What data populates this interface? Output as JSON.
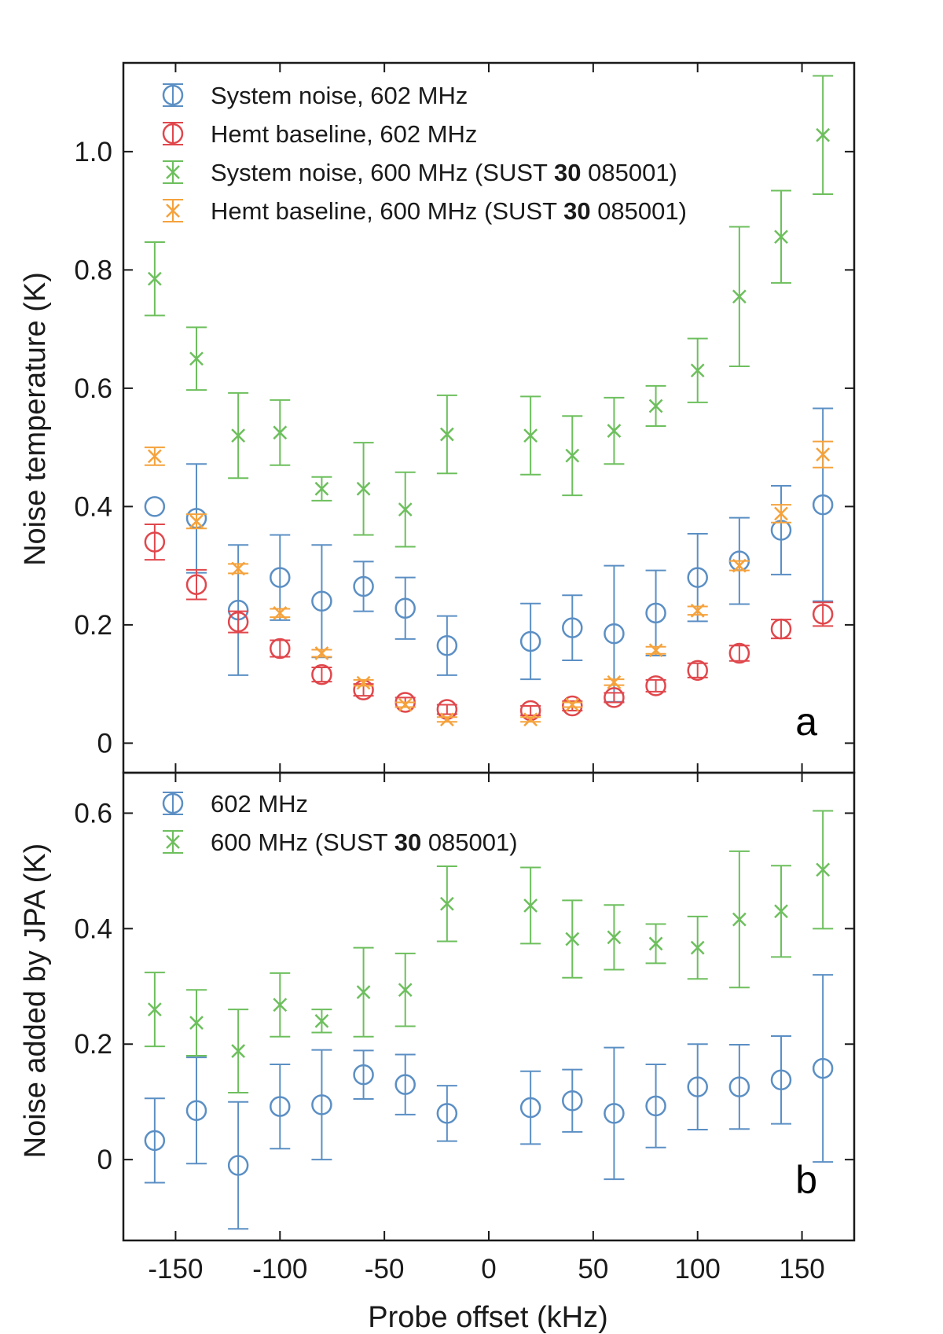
{
  "chart_data": [
    {
      "panel": "a",
      "type": "scatter",
      "ylabel": "Noise temperature (K)",
      "xlim": [
        -175,
        175
      ],
      "ylim": [
        -0.05,
        1.15
      ],
      "yticks": [
        0,
        0.2,
        0.4,
        0.6,
        0.8,
        1.0
      ],
      "ytick_labels": [
        "0",
        "0.2",
        "0.4",
        "0.6",
        "0.8",
        "1.0"
      ],
      "legend_position": "top-left",
      "series": [
        {
          "name": "System noise, 602 MHz",
          "marker": "circle",
          "color": "#5b8fc4",
          "x": [
            -160,
            -140,
            -120,
            -100,
            -80,
            -60,
            -40,
            -20,
            20,
            40,
            60,
            80,
            100,
            120,
            140,
            160
          ],
          "y": [
            0.4,
            0.38,
            0.225,
            0.28,
            0.24,
            0.265,
            0.228,
            0.165,
            0.172,
            0.195,
            0.185,
            0.22,
            0.28,
            0.308,
            0.36,
            0.403
          ],
          "err": [
            0.0,
            0.092,
            0.11,
            0.072,
            0.095,
            0.042,
            0.052,
            0.05,
            0.064,
            0.055,
            0.115,
            0.072,
            0.074,
            0.073,
            0.075,
            0.163
          ]
        },
        {
          "name": "Hemt baseline, 602 MHz",
          "marker": "circle",
          "color": "#e0474c",
          "x": [
            -160,
            -140,
            -120,
            -100,
            -80,
            -60,
            -40,
            -20,
            20,
            40,
            60,
            80,
            100,
            120,
            140,
            160
          ],
          "y": [
            0.34,
            0.268,
            0.205,
            0.16,
            0.116,
            0.09,
            0.069,
            0.057,
            0.055,
            0.063,
            0.077,
            0.097,
            0.123,
            0.152,
            0.193,
            0.218
          ],
          "err": [
            0.03,
            0.025,
            0.018,
            0.014,
            0.012,
            0.01,
            0.008,
            0.008,
            0.008,
            0.008,
            0.008,
            0.01,
            0.012,
            0.013,
            0.016,
            0.02
          ]
        },
        {
          "name": "System noise, 600 MHz (SUST 30 085001)",
          "marker": "x",
          "color": "#6dbf5d",
          "x": [
            -160,
            -140,
            -120,
            -100,
            -80,
            -60,
            -40,
            -20,
            20,
            40,
            60,
            80,
            100,
            120,
            140,
            160
          ],
          "y": [
            0.785,
            0.65,
            0.52,
            0.525,
            0.43,
            0.43,
            0.395,
            0.522,
            0.52,
            0.486,
            0.528,
            0.57,
            0.63,
            0.755,
            0.856,
            1.028
          ],
          "err": [
            0.062,
            0.053,
            0.072,
            0.055,
            0.02,
            0.078,
            0.063,
            0.066,
            0.066,
            0.067,
            0.056,
            0.034,
            0.054,
            0.118,
            0.078,
            0.1
          ]
        },
        {
          "name": "Hemt baseline, 600 MHz (SUST 30 085001)",
          "marker": "x",
          "color": "#f5a23c",
          "x": [
            -160,
            -140,
            -120,
            -100,
            -80,
            -60,
            -40,
            -20,
            20,
            40,
            60,
            80,
            100,
            120,
            140,
            160
          ],
          "y": [
            0.485,
            0.375,
            0.295,
            0.22,
            0.152,
            0.102,
            0.065,
            0.04,
            0.04,
            0.065,
            0.103,
            0.157,
            0.224,
            0.3,
            0.388,
            0.488
          ],
          "err": [
            0.015,
            0.012,
            0.008,
            0.007,
            0.006,
            0.005,
            0.004,
            0.004,
            0.004,
            0.004,
            0.005,
            0.006,
            0.007,
            0.008,
            0.015,
            0.022
          ]
        }
      ],
      "legend": {
        "entries": [
          {
            "prefix": "System noise, 602 MHz",
            "bold": "",
            "suffix": ""
          },
          {
            "prefix": "Hemt baseline, 602 MHz",
            "bold": "",
            "suffix": ""
          },
          {
            "prefix": "System noise, 600 MHz (SUST ",
            "bold": "30",
            "suffix": " 085001)"
          },
          {
            "prefix": "Hemt baseline, 600 MHz (SUST ",
            "bold": "30",
            "suffix": " 085001)"
          }
        ]
      }
    },
    {
      "panel": "b",
      "type": "scatter",
      "ylabel": "Noise added by JPA (K)",
      "xlabel": "Probe offset (kHz)",
      "xlim": [
        -175,
        175
      ],
      "ylim": [
        -0.14,
        0.67
      ],
      "yticks": [
        0,
        0.2,
        0.4,
        0.6
      ],
      "ytick_labels": [
        "0",
        "0.2",
        "0.4",
        "0.6"
      ],
      "xticks": [
        -150,
        -100,
        -50,
        0,
        50,
        100,
        150
      ],
      "xtick_labels": [
        "-150",
        "-100",
        "-50",
        "0",
        "50",
        "100",
        "150"
      ],
      "legend_position": "top-left",
      "series": [
        {
          "name": "602 MHz",
          "marker": "circle",
          "color": "#5b8fc4",
          "x": [
            -160,
            -140,
            -120,
            -100,
            -80,
            -60,
            -40,
            -20,
            20,
            40,
            60,
            80,
            100,
            120,
            140,
            160
          ],
          "y": [
            0.033,
            0.085,
            -0.01,
            0.092,
            0.095,
            0.147,
            0.13,
            0.08,
            0.09,
            0.102,
            0.08,
            0.093,
            0.126,
            0.126,
            0.138,
            0.158
          ],
          "err": [
            0.073,
            0.092,
            0.11,
            0.073,
            0.095,
            0.042,
            0.052,
            0.048,
            0.063,
            0.054,
            0.114,
            0.072,
            0.074,
            0.073,
            0.076,
            0.162
          ]
        },
        {
          "name": "600 MHz (SUST 30 085001)",
          "marker": "x",
          "color": "#6dbf5d",
          "x": [
            -160,
            -140,
            -120,
            -100,
            -80,
            -60,
            -40,
            -20,
            20,
            40,
            60,
            80,
            100,
            120,
            140,
            160
          ],
          "y": [
            0.26,
            0.237,
            0.188,
            0.268,
            0.24,
            0.29,
            0.294,
            0.443,
            0.44,
            0.382,
            0.385,
            0.374,
            0.367,
            0.416,
            0.43,
            0.502
          ],
          "err": [
            0.064,
            0.057,
            0.072,
            0.055,
            0.02,
            0.077,
            0.063,
            0.065,
            0.066,
            0.067,
            0.056,
            0.034,
            0.054,
            0.118,
            0.079,
            0.102
          ]
        }
      ],
      "legend": {
        "entries": [
          {
            "prefix": "602 MHz",
            "bold": "",
            "suffix": ""
          },
          {
            "prefix": "600 MHz (SUST ",
            "bold": "30",
            "suffix": " 085001)"
          }
        ]
      }
    }
  ]
}
